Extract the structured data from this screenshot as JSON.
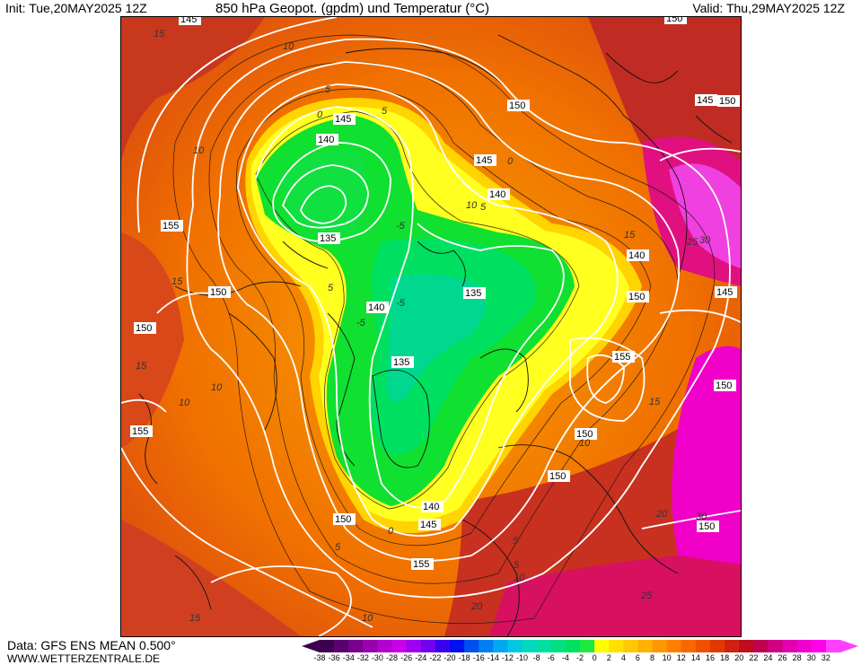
{
  "header": {
    "init": "Init: Tue,20MAY2025 12Z",
    "title": "850 hPa Geopot. (gpdm) und Temperatur (°C)",
    "valid": "Valid: Thu,29MAY2025 12Z"
  },
  "footer": {
    "data_source": "Data: GFS ENS MEAN 0.500°",
    "website": "WWW.WETTERZENTRALE.DE"
  },
  "colorbar": {
    "labels": [
      "-38",
      "-36",
      "-34",
      "-32",
      "-30",
      "-28",
      "-26",
      "-24",
      "-22",
      "-20",
      "-18",
      "-16",
      "-14",
      "-12",
      "-10",
      "-8",
      "-6",
      "-4",
      "-2",
      "0",
      "2",
      "4",
      "6",
      "8",
      "10",
      "12",
      "14",
      "16",
      "18",
      "20",
      "22",
      "24",
      "26",
      "28",
      "30",
      "32"
    ],
    "colors": [
      "#3d0050",
      "#5a0070",
      "#7a0090",
      "#9a00b0",
      "#b400d0",
      "#c800e8",
      "#a000f0",
      "#7000f0",
      "#3a00f0",
      "#0010f0",
      "#0050f0",
      "#0080f0",
      "#00a8f0",
      "#00c8e0",
      "#00d8c0",
      "#00e0a0",
      "#00e080",
      "#00e060",
      "#20e840",
      "#ffff00",
      "#ffe000",
      "#ffc800",
      "#ffb000",
      "#ff9800",
      "#ff8000",
      "#f86800",
      "#f05000",
      "#e03800",
      "#d02010",
      "#c00c20",
      "#c00050",
      "#d00080",
      "#e000b0",
      "#f000d0",
      "#ff00e8",
      "#ff40ff"
    ]
  },
  "map": {
    "geopotential_labels": [
      "145",
      "150",
      "140",
      "145",
      "140",
      "135",
      "155",
      "150",
      "150",
      "140",
      "135",
      "145",
      "150",
      "155",
      "135",
      "150",
      "150",
      "140",
      "145",
      "150",
      "155",
      "150",
      "145",
      "140",
      "145",
      "150",
      "150",
      "155",
      "150"
    ],
    "temperature_labels": [
      "15",
      "10",
      "10",
      "5",
      "0",
      "5",
      "10",
      "5",
      "0",
      "-5",
      "-5",
      "-5",
      "15",
      "10",
      "5",
      "10",
      "5",
      "0",
      "5",
      "10",
      "15",
      "10",
      "15",
      "20",
      "25",
      "15",
      "10",
      "15",
      "25",
      "30",
      "20",
      "30",
      "5"
    ]
  }
}
